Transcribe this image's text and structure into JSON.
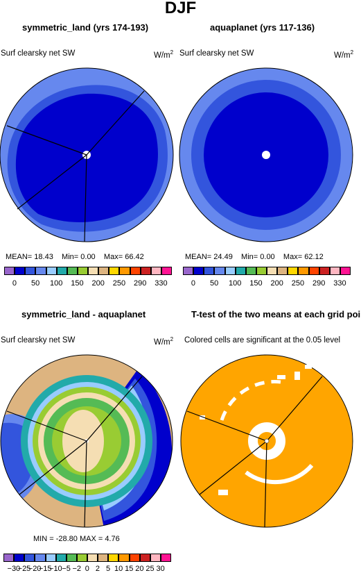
{
  "main_title": "DJF",
  "panels": [
    {
      "title": "symmetric_land (yrs 174-193)",
      "variable": "Surf clearsky net SW",
      "units_base": "W/m",
      "units_exp": "2",
      "stats": {
        "mean_label": "MEAN=",
        "mean": "18.43",
        "min_label": "Min=",
        "min": "0.00",
        "max_label": "Max=",
        "max": "66.42"
      },
      "colorbar": {
        "colors": [
          "#9966cc",
          "#0000cc",
          "#3355dd",
          "#6688ee",
          "#99ccff",
          "#22aaaa",
          "#55bb55",
          "#99cc33",
          "#f5deb3",
          "#ddb480",
          "#ffd700",
          "#ff9900",
          "#ff4400",
          "#cc2222",
          "#ffb6c1",
          "#ff1493"
        ],
        "tick_labels": [
          "0",
          "50",
          "100",
          "150",
          "200",
          "250",
          "290",
          "330"
        ]
      }
    },
    {
      "title": "aquaplanet (yrs 117-136)",
      "variable": "Surf clearsky net SW",
      "units_base": "W/m",
      "units_exp": "2",
      "stats": {
        "mean_label": "MEAN=",
        "mean": "24.49",
        "min_label": "Min=",
        "min": "0.00",
        "max_label": "Max=",
        "max": "62.12"
      },
      "colorbar": {
        "colors": [
          "#9966cc",
          "#0000cc",
          "#3355dd",
          "#6688ee",
          "#99ccff",
          "#22aaaa",
          "#55bb55",
          "#99cc33",
          "#f5deb3",
          "#ddb480",
          "#ffd700",
          "#ff9900",
          "#ff4400",
          "#cc2222",
          "#ffb6c1",
          "#ff1493"
        ],
        "tick_labels": [
          "0",
          "50",
          "100",
          "150",
          "200",
          "250",
          "290",
          "330"
        ]
      }
    },
    {
      "title": "symmetric_land - aquaplanet",
      "variable": "Surf clearsky net SW",
      "units_base": "W/m",
      "units_exp": "2",
      "stats": {
        "text": "MIN = -28.80  MAX =    4.76"
      },
      "colorbar": {
        "colors": [
          "#9966cc",
          "#0000cc",
          "#3355dd",
          "#6688ee",
          "#99ccff",
          "#22aaaa",
          "#55bb55",
          "#99cc33",
          "#f5deb3",
          "#ddb480",
          "#ffd700",
          "#ff9900",
          "#ff4400",
          "#cc2222",
          "#ffb6c1",
          "#ff1493"
        ],
        "tick_labels": [
          "−30",
          "−25",
          "−20",
          "−15",
          "−10",
          "−5",
          "−2",
          "0",
          "2",
          "5",
          "10",
          "15",
          "20",
          "25",
          "30"
        ]
      }
    },
    {
      "title": "T-test of the two means at each grid point",
      "variable": "Colored cells are significant at the 0.05 level"
    }
  ],
  "chart_data": [
    {
      "type": "heatmap",
      "projection": "polar",
      "title": "symmetric_land (yrs 174-193)",
      "variable": "Surf clearsky net SW",
      "units": "W/m2",
      "mean": 18.43,
      "min": 0.0,
      "max": 66.42,
      "levels": [
        0,
        50,
        100,
        150,
        200,
        250,
        290,
        330
      ]
    },
    {
      "type": "heatmap",
      "projection": "polar",
      "title": "aquaplanet (yrs 117-136)",
      "variable": "Surf clearsky net SW",
      "units": "W/m2",
      "mean": 24.49,
      "min": 0.0,
      "max": 62.12,
      "levels": [
        0,
        50,
        100,
        150,
        200,
        250,
        290,
        330
      ]
    },
    {
      "type": "heatmap",
      "projection": "polar",
      "title": "symmetric_land - aquaplanet",
      "variable": "Surf clearsky net SW",
      "units": "W/m2",
      "min": -28.8,
      "max": 4.76,
      "levels": [
        -30,
        -25,
        -20,
        -15,
        -10,
        -5,
        -2,
        0,
        2,
        5,
        10,
        15,
        20,
        25,
        30
      ]
    },
    {
      "type": "heatmap",
      "projection": "polar",
      "title": "T-test of the two means at each grid point",
      "note": "Colored cells are significant at the 0.05 level",
      "color": "#ffa500"
    }
  ]
}
